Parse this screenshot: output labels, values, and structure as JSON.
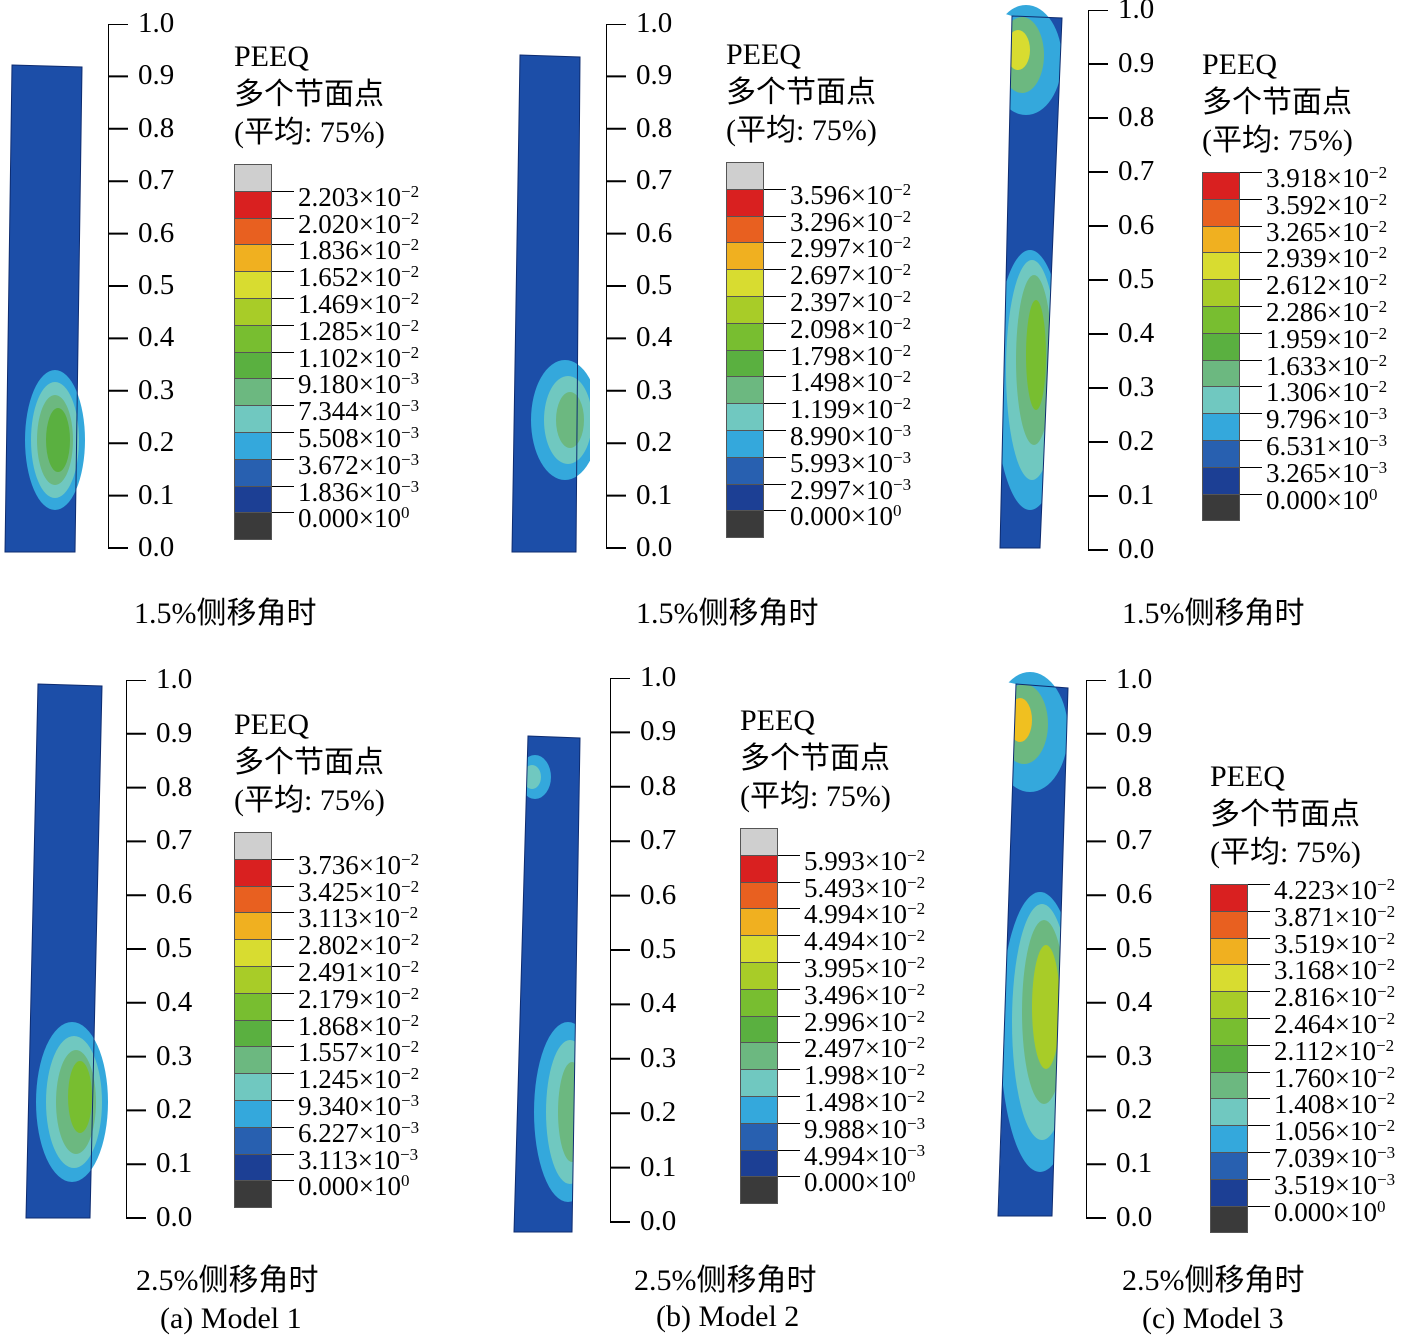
{
  "axis_ticks": [
    "1.0",
    "0.9",
    "0.8",
    "0.7",
    "0.6",
    "0.5",
    "0.4",
    "0.3",
    "0.2",
    "0.1",
    "0.0"
  ],
  "legend_title": [
    "PEEQ",
    "多个节面点",
    "(平均: 75%)"
  ],
  "colors": [
    "#cfcfcf",
    "#d92020",
    "#e86020",
    "#f0b020",
    "#d8dc30",
    "#a8cc28",
    "#78be30",
    "#5ab040",
    "#6cb880",
    "#70c8c0",
    "#34a8dc",
    "#2860b0",
    "#1c3f94",
    "#3a3a3a"
  ],
  "panels": [
    {
      "id": "a1",
      "caption": "1.5%侧移角时",
      "values": [
        "2.203×10",
        "2.020×10",
        "1.836×10",
        "1.652×10",
        "1.469×10",
        "1.285×10",
        "1.102×10",
        "9.180×10",
        "7.344×10",
        "5.508×10",
        "3.672×10",
        "1.836×10",
        "0.000×10"
      ],
      "exps": [
        "−2",
        "−2",
        "−2",
        "−2",
        "−2",
        "−2",
        "−2",
        "−3",
        "−3",
        "−3",
        "−3",
        "−3",
        "0"
      ],
      "gray": true
    },
    {
      "id": "b1",
      "caption": "1.5%侧移角时",
      "values": [
        "3.596×10",
        "3.296×10",
        "2.997×10",
        "2.697×10",
        "2.397×10",
        "2.098×10",
        "1.798×10",
        "1.498×10",
        "1.199×10",
        "8.990×10",
        "5.993×10",
        "2.997×10",
        "0.000×10"
      ],
      "exps": [
        "−2",
        "−2",
        "−2",
        "−2",
        "−2",
        "−2",
        "−2",
        "−2",
        "−2",
        "−3",
        "−3",
        "−3",
        "0"
      ],
      "gray": true
    },
    {
      "id": "c1",
      "caption": "1.5%侧移角时",
      "values": [
        "3.918×10",
        "3.592×10",
        "3.265×10",
        "2.939×10",
        "2.612×10",
        "2.286×10",
        "1.959×10",
        "1.633×10",
        "1.306×10",
        "9.796×10",
        "6.531×10",
        "3.265×10",
        "0.000×10"
      ],
      "exps": [
        "−2",
        "−2",
        "−2",
        "−2",
        "−2",
        "−2",
        "−2",
        "−2",
        "−2",
        "−3",
        "−3",
        "−3",
        "0"
      ],
      "gray": false
    },
    {
      "id": "a2",
      "caption": "2.5%侧移角时",
      "values": [
        "3.736×10",
        "3.425×10",
        "3.113×10",
        "2.802×10",
        "2.491×10",
        "2.179×10",
        "1.868×10",
        "1.557×10",
        "1.245×10",
        "9.340×10",
        "6.227×10",
        "3.113×10",
        "0.000×10"
      ],
      "exps": [
        "−2",
        "−2",
        "−2",
        "−2",
        "−2",
        "−2",
        "−2",
        "−2",
        "−2",
        "−3",
        "−3",
        "−3",
        "0"
      ],
      "gray": true
    },
    {
      "id": "b2",
      "caption": "2.5%侧移角时",
      "values": [
        "5.993×10",
        "5.493×10",
        "4.994×10",
        "4.494×10",
        "3.995×10",
        "3.496×10",
        "2.996×10",
        "2.497×10",
        "1.998×10",
        "1.498×10",
        "9.988×10",
        "4.994×10",
        "0.000×10"
      ],
      "exps": [
        "−2",
        "−2",
        "−2",
        "−2",
        "−2",
        "−2",
        "−2",
        "−2",
        "−2",
        "−2",
        "−3",
        "−3",
        "0"
      ],
      "gray": true
    },
    {
      "id": "c2",
      "caption": "2.5%侧移角时",
      "values": [
        "4.223×10",
        "3.871×10",
        "3.519×10",
        "3.168×10",
        "2.816×10",
        "2.464×10",
        "2.112×10",
        "1.760×10",
        "1.408×10",
        "1.056×10",
        "7.039×10",
        "3.519×10",
        "0.000×10"
      ],
      "exps": [
        "−2",
        "−2",
        "−2",
        "−2",
        "−2",
        "−2",
        "−2",
        "−2",
        "−2",
        "−2",
        "−3",
        "−3",
        "0"
      ],
      "gray": false
    }
  ],
  "models": [
    "(a) Model 1",
    "(b) Model 2",
    "(c) Model 3"
  ]
}
